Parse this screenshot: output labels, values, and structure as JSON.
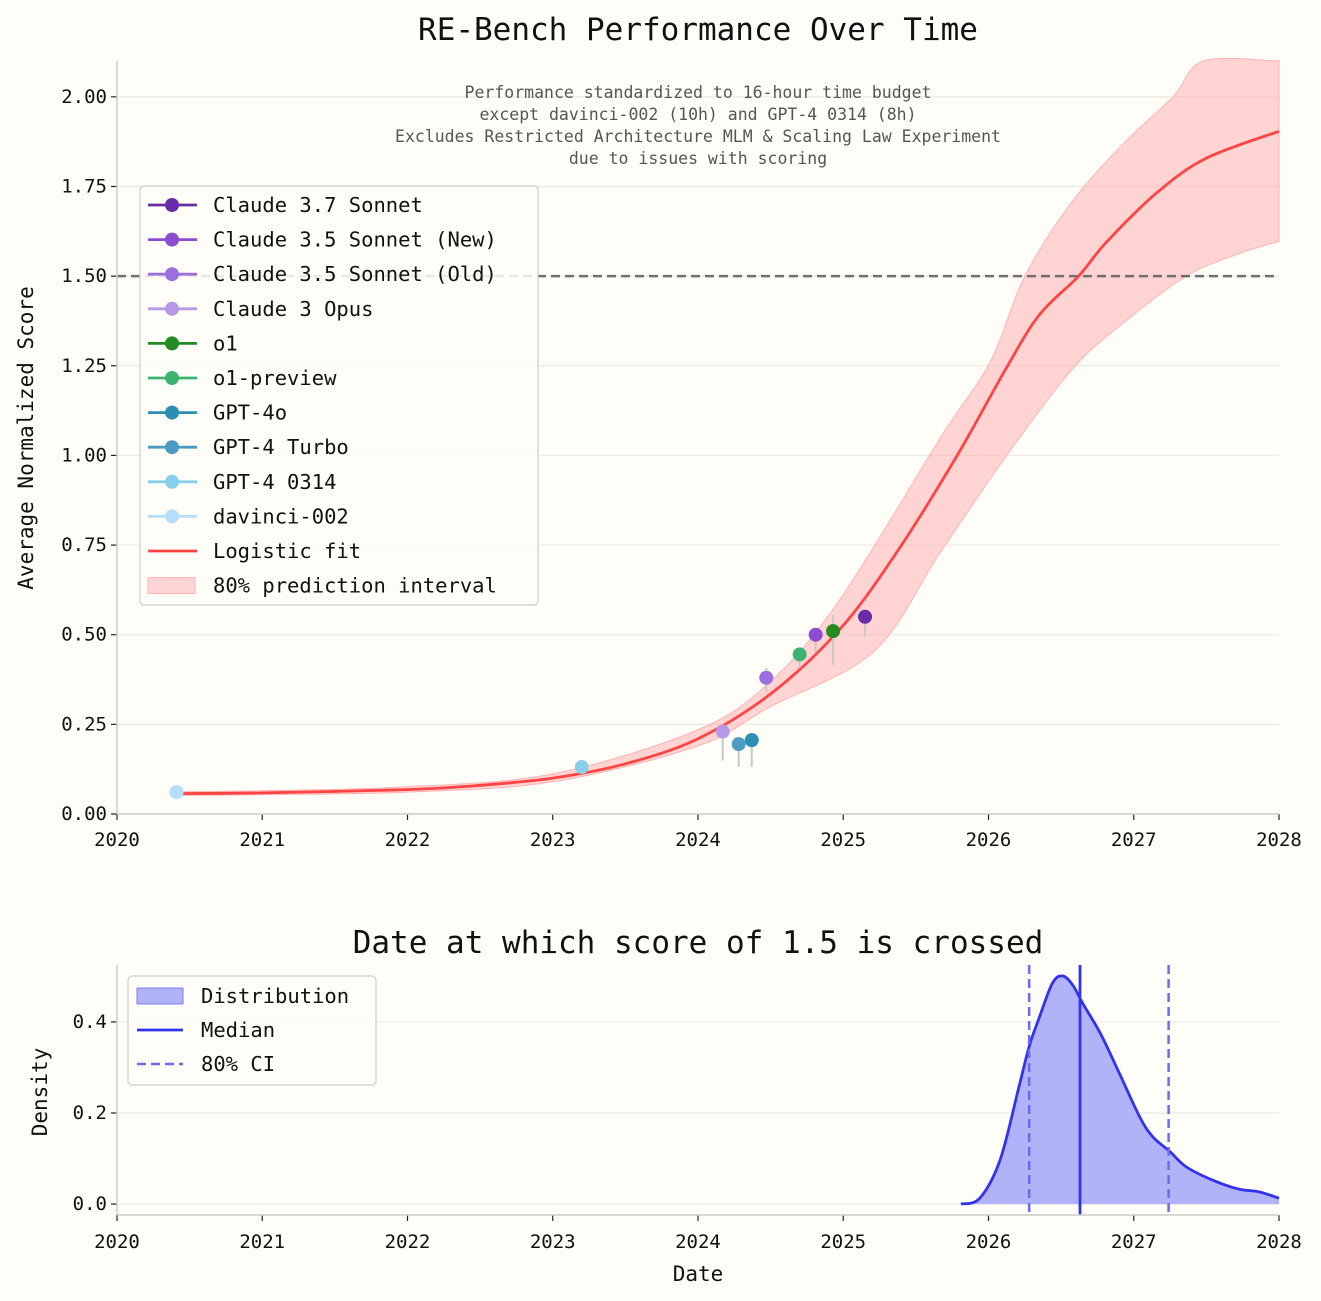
{
  "chart_data": [
    {
      "type": "scatter",
      "title": "RE-Bench Performance Over Time",
      "xlabel": "",
      "ylabel": "Average Normalized Score",
      "xlim": [
        2020,
        2028
      ],
      "ylim": [
        0,
        2.1
      ],
      "xticks": [
        "2020",
        "2021",
        "2022",
        "2023",
        "2024",
        "2025",
        "2026",
        "2027",
        "2028"
      ],
      "yticks": [
        "0.00",
        "0.25",
        "0.50",
        "0.75",
        "1.00",
        "1.25",
        "1.50",
        "1.75",
        "2.00"
      ],
      "grid": "horizontal",
      "legend_placement": "upper-left",
      "annotation": [
        "Performance standardized to 16-hour time budget",
        "except davinci-002 (10h) and GPT-4 0314 (8h)",
        "Excludes Restricted Architecture MLM & Scaling Law Experiment",
        "due to issues with scoring"
      ],
      "threshold": {
        "y": 1.5,
        "color": "#707070",
        "style": "dashed"
      },
      "points": [
        {
          "name": "Claude 3.7 Sonnet",
          "x": 2025.15,
          "y": 0.55,
          "err": [
            0.495,
            0.55
          ],
          "color": "#6a2ca6"
        },
        {
          "name": "Claude 3.5 Sonnet (New)",
          "x": 2024.81,
          "y": 0.5,
          "err": [
            0.45,
            0.5
          ],
          "color": "#8b4ccf"
        },
        {
          "name": "Claude 3.5 Sonnet (Old)",
          "x": 2024.47,
          "y": 0.38,
          "err": [
            0.34,
            0.407
          ],
          "color": "#9c6ee0"
        },
        {
          "name": "Claude 3 Opus",
          "x": 2024.17,
          "y": 0.23,
          "err": [
            0.149,
            0.23
          ],
          "color": "#b798e6"
        },
        {
          "name": "o1",
          "x": 2024.93,
          "y": 0.51,
          "err": [
            0.416,
            0.555
          ],
          "color": "#228b22"
        },
        {
          "name": "o1-preview",
          "x": 2024.7,
          "y": 0.445,
          "err": [
            0.407,
            0.445
          ],
          "color": "#3cb371"
        },
        {
          "name": "GPT-4o",
          "x": 2024.37,
          "y": 0.206,
          "err": [
            0.131,
            0.206
          ],
          "color": "#2a8fb2"
        },
        {
          "name": "GPT-4 Turbo",
          "x": 2024.28,
          "y": 0.195,
          "err": [
            0.131,
            0.195
          ],
          "color": "#4b9cc2"
        },
        {
          "name": "GPT-4 0314",
          "x": 2023.2,
          "y": 0.131,
          "err": [
            0.131,
            0.131
          ],
          "color": "#87ceeb"
        },
        {
          "name": "davinci-002",
          "x": 2020.41,
          "y": 0.061,
          "err": [
            0.061,
            0.061
          ],
          "color": "#b5defa"
        }
      ],
      "fit": {
        "name": "Logistic fit",
        "color": "#ff4444",
        "x": [
          2020.4,
          2021,
          2022,
          2022.5,
          2023,
          2023.5,
          2024,
          2024.5,
          2024.98,
          2025.37,
          2025.78,
          2026.12,
          2026.35,
          2026.62,
          2026.81,
          2027.16,
          2027.5,
          2028
        ],
        "y": [
          0.057,
          0.059,
          0.068,
          0.08,
          0.1,
          0.14,
          0.21,
          0.335,
          0.517,
          0.731,
          0.997,
          1.242,
          1.392,
          1.5,
          1.594,
          1.733,
          1.829,
          1.904
        ]
      },
      "interval": {
        "name": "80% prediction interval",
        "color": "#ffb3b3",
        "x_upper": [
          2020.4,
          2021,
          2022,
          2023,
          2024,
          2024.5,
          2024.98,
          2025.67,
          2026.01,
          2026.25,
          2026.58,
          2026.93,
          2027.27,
          2027.48,
          2028
        ],
        "upper": [
          0.062,
          0.065,
          0.076,
          0.112,
          0.235,
          0.37,
          0.6,
          1.05,
          1.26,
          1.5,
          1.71,
          1.87,
          2.0,
          2.1,
          2.1
        ],
        "x_lower": [
          2020.4,
          2021,
          2022,
          2023,
          2024,
          2024.5,
          2025.21,
          2025.67,
          2026.12,
          2026.58,
          2026.93,
          2027.36,
          2027.72,
          2028
        ],
        "lower": [
          0.052,
          0.054,
          0.061,
          0.09,
          0.19,
          0.3,
          0.453,
          0.731,
          0.997,
          1.242,
          1.37,
          1.5,
          1.562,
          1.597
        ]
      }
    },
    {
      "type": "area",
      "title": "Date at which score of 1.5 is crossed",
      "xlabel": "Date",
      "ylabel": "Density",
      "xlim": [
        2020,
        2028
      ],
      "ylim": [
        -0.024,
        0.525
      ],
      "xticks": [
        "2020",
        "2021",
        "2022",
        "2023",
        "2024",
        "2025",
        "2026",
        "2027",
        "2028"
      ],
      "yticks": [
        "0.0",
        "0.2",
        "0.4"
      ],
      "grid": "horizontal",
      "legend_placement": "upper-left",
      "distribution": {
        "name": "Distribution",
        "color": "#3333ee",
        "fill": "#b0b3f8",
        "x": [
          2025.81,
          2025.94,
          2026.08,
          2026.21,
          2026.28,
          2026.35,
          2026.44,
          2026.51,
          2026.58,
          2026.65,
          2026.77,
          2026.9,
          2027.04,
          2027.13,
          2027.25,
          2027.36,
          2027.54,
          2027.72,
          2027.86,
          2028.0
        ],
        "y": [
          0.0,
          0.013,
          0.097,
          0.258,
          0.346,
          0.41,
          0.485,
          0.501,
          0.481,
          0.44,
          0.375,
          0.288,
          0.192,
          0.148,
          0.115,
          0.082,
          0.053,
          0.033,
          0.027,
          0.013
        ]
      },
      "median": {
        "name": "Median",
        "x": 2026.63,
        "color": "#3333ee"
      },
      "ci": {
        "name": "80% CI",
        "x": [
          2026.28,
          2027.24
        ],
        "color": "#6b6bf0"
      }
    }
  ]
}
